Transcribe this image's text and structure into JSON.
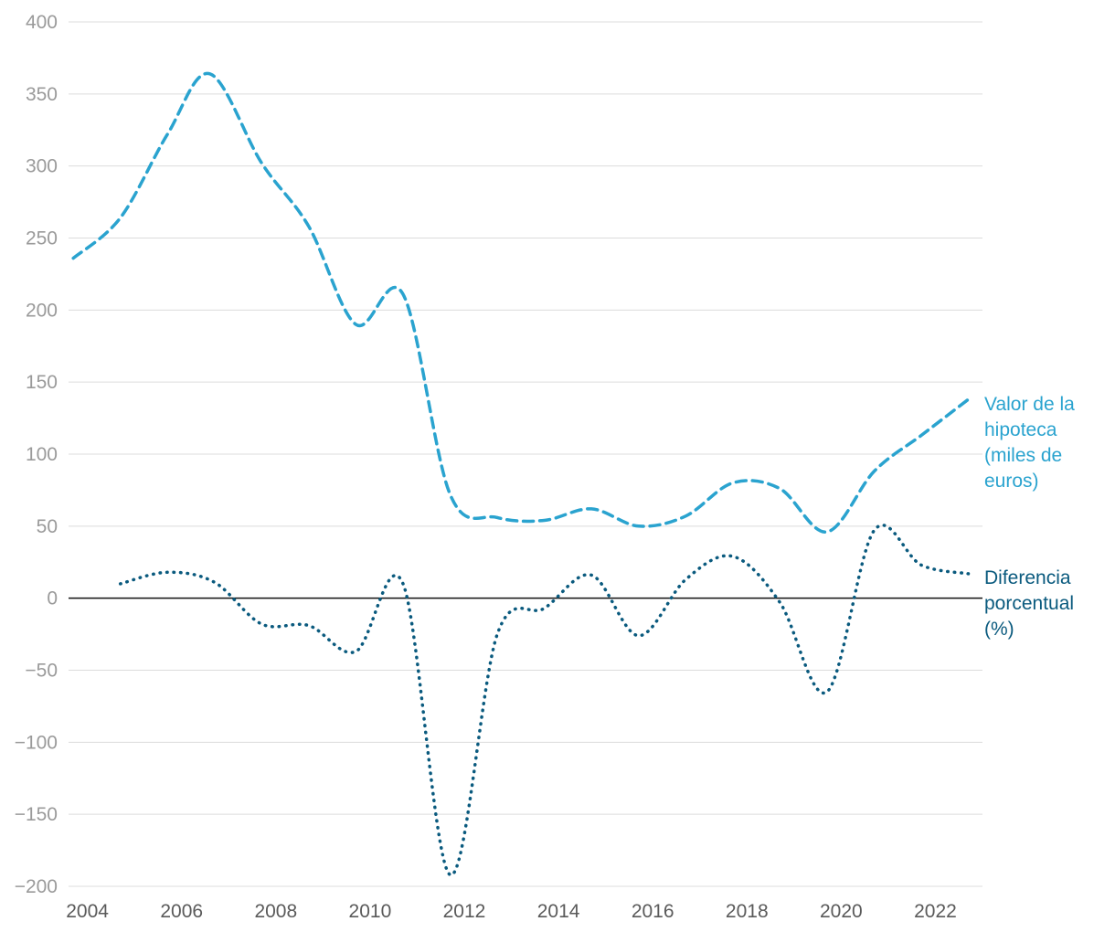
{
  "chart_data": {
    "type": "line",
    "title": "",
    "xlabel": "",
    "ylabel": "",
    "xlim": [
      2003.6,
      2023.0
    ],
    "ylim": [
      -200,
      400
    ],
    "yticks": [
      400,
      350,
      300,
      250,
      200,
      150,
      100,
      50,
      0,
      -50,
      -100,
      -150,
      -200
    ],
    "ytick_labels": [
      "400",
      "350",
      "300",
      "250",
      "200",
      "150",
      "100",
      "50",
      "0",
      "−50",
      "−100",
      "−150",
      "−200"
    ],
    "xticks": [
      2004,
      2006,
      2008,
      2010,
      2012,
      2014,
      2016,
      2018,
      2020,
      2022
    ],
    "xtick_labels": [
      "2004",
      "2006",
      "2008",
      "2010",
      "2012",
      "2014",
      "2016",
      "2018",
      "2020",
      "2022"
    ],
    "grid": true,
    "series": [
      {
        "name": "Valor de la hipoteca (miles de euros)",
        "label_lines": [
          "Valor de la",
          "hipoteca",
          "(miles de",
          "euros)"
        ],
        "color": "#2aa3cf",
        "style": "dashed",
        "x": [
          2003.7,
          2004.7,
          2005.7,
          2006.6,
          2007.7,
          2008.7,
          2009.7,
          2010.7,
          2011.7,
          2012.7,
          2013.7,
          2014.7,
          2015.7,
          2016.7,
          2017.7,
          2018.7,
          2019.7,
          2020.7,
          2021.7,
          2022.7
        ],
        "values": [
          236,
          264,
          322,
          364,
          302,
          258,
          190,
          211,
          72,
          56,
          54,
          62,
          50,
          57,
          80,
          76,
          46,
          88,
          113,
          138
        ]
      },
      {
        "name": "Diferencia porcentual (%)",
        "label_lines": [
          "Diferencia",
          "porcentual",
          "(%)"
        ],
        "color": "#0a5a7e",
        "style": "dotted",
        "x": [
          2004.7,
          2005.7,
          2006.7,
          2007.7,
          2008.7,
          2009.7,
          2010.7,
          2011.7,
          2012.7,
          2013.7,
          2014.7,
          2015.7,
          2016.7,
          2017.7,
          2018.7,
          2019.7,
          2020.7,
          2021.7,
          2022.7
        ],
        "values": [
          10,
          18,
          11,
          -18,
          -19,
          -37,
          10,
          -192,
          -25,
          -7,
          16,
          -26,
          13,
          29,
          -3,
          -65,
          47,
          23,
          17
        ]
      }
    ]
  }
}
